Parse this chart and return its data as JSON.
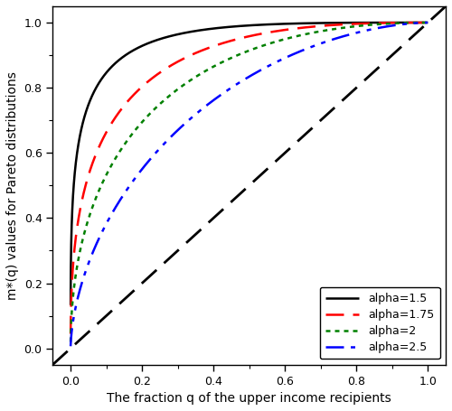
{
  "alphas": [
    1.5,
    1.75,
    2.0,
    2.5
  ],
  "colors": [
    "black",
    "red",
    "green",
    "blue"
  ],
  "linestyles": [
    "-",
    "--",
    "dotted",
    "dashdot"
  ],
  "linewidths": [
    1.8,
    1.8,
    1.8,
    1.8
  ],
  "legend_labels": [
    "alpha=1.5",
    "alpha=1.75",
    "alpha=2",
    "alpha=2.5"
  ],
  "xlabel": "The fraction q of the upper income recipients",
  "ylabel": "m*(q) values for Pareto distributions",
  "xlim": [
    -0.05,
    1.05
  ],
  "ylim": [
    -0.05,
    1.05
  ],
  "xticks": [
    0.0,
    0.2,
    0.4,
    0.6,
    0.8,
    1.0
  ],
  "yticks": [
    0.0,
    0.2,
    0.4,
    0.6,
    0.8,
    1.0
  ],
  "diagonal_color": "black",
  "diagonal_linestyle": "--",
  "diagonal_linewidth": 2.0,
  "background_color": "white",
  "legend_loc": "lower right",
  "figsize": [
    5.0,
    4.55
  ],
  "dpi": 100,
  "tick_fontsize": 9,
  "label_fontsize": 10,
  "legend_fontsize": 9
}
